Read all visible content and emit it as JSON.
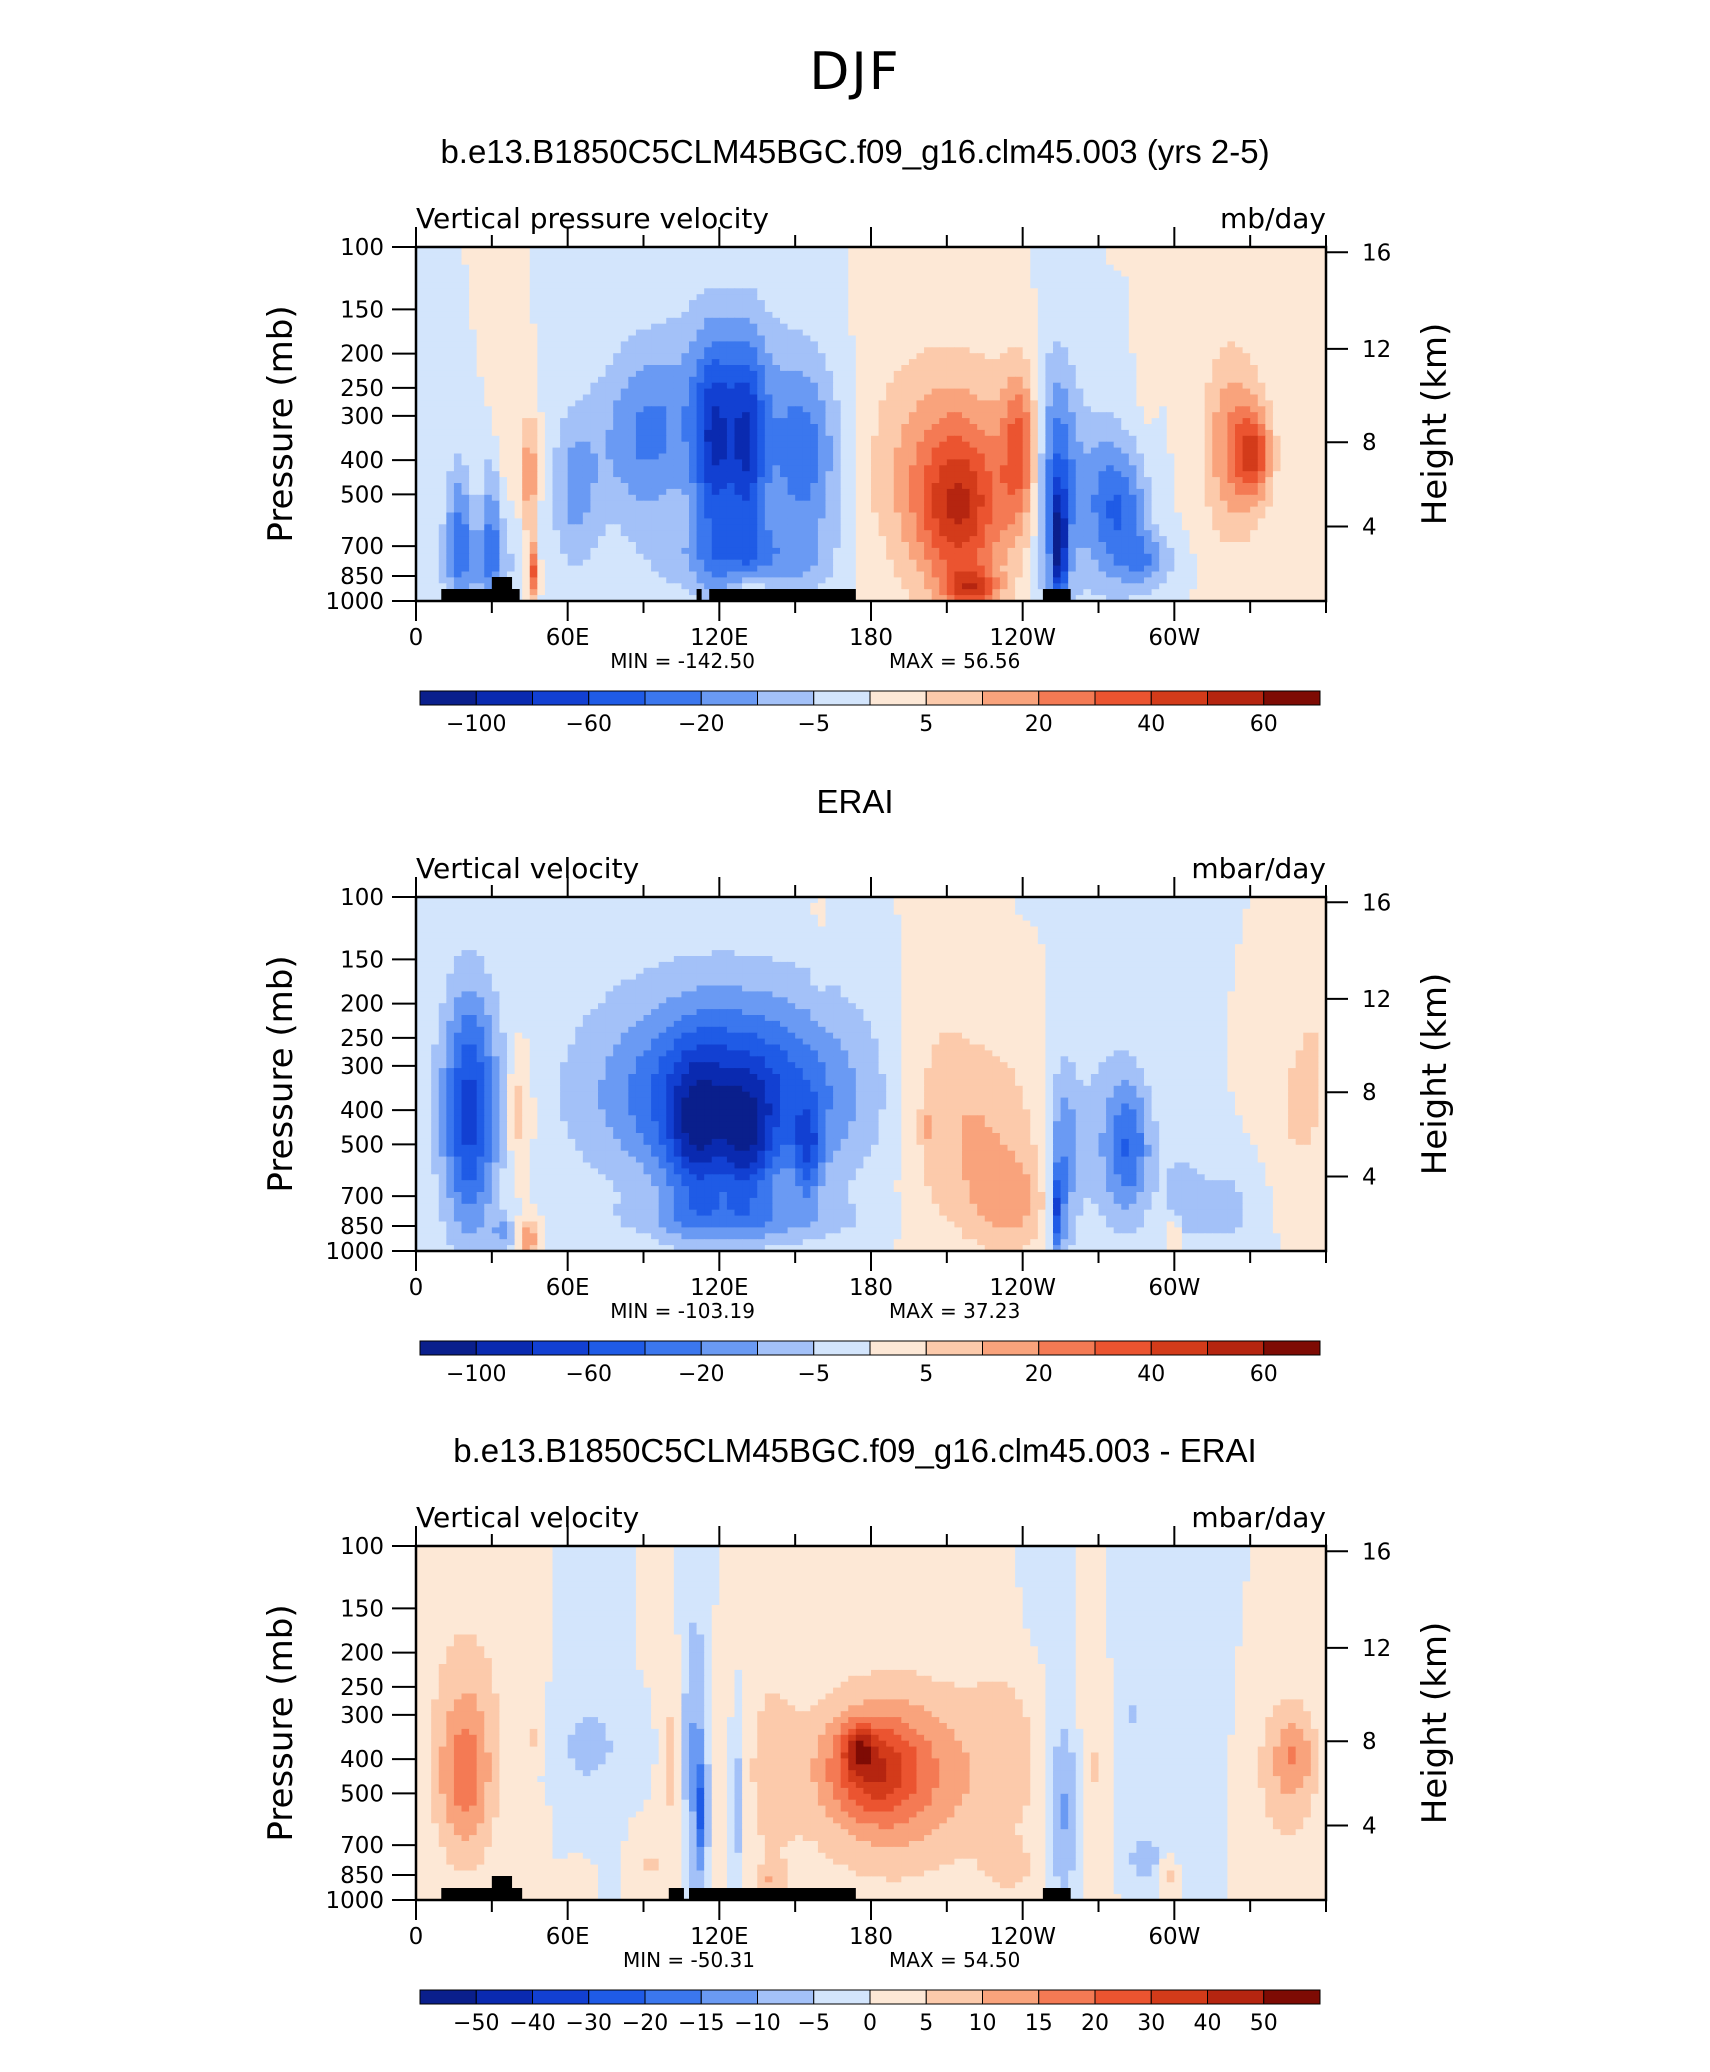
{
  "page": {
    "title": "DJF"
  },
  "chart_data": [
    {
      "type": "heatmap",
      "title": "b.e13.B1850C5CLM45BGC.f09_g16.clm45.003 (yrs 2-5)",
      "variable": "Vertical pressure velocity",
      "units": "mb/day",
      "ylabel": "Pressure (mb)",
      "y2label": "Height (km)",
      "x_ticks": [
        "0",
        "60E",
        "120E",
        "180",
        "120W",
        "60W"
      ],
      "y_ticks": [
        "100",
        "150",
        "200",
        "250",
        "300",
        "400",
        "500",
        "700",
        "850",
        "1000"
      ],
      "y2_ticks": [
        "16",
        "12",
        "8",
        "4"
      ],
      "stats": {
        "min_label": "MIN = -142.50",
        "max_label": "MAX = 56.56",
        "min": -142.5,
        "max": 56.56
      },
      "colorbar_labels": [
        "-100",
        "-60",
        "-20",
        "-5",
        "5",
        "20",
        "40",
        "60"
      ],
      "colors": [
        "#0a1f8c",
        "#0a2ab0",
        "#1240d2",
        "#1f5be6",
        "#3b77ee",
        "#6a9af3",
        "#a3c1f8",
        "#d3e5fc",
        "#fde8d6",
        "#fccaab",
        "#f9a37c",
        "#f47a54",
        "#eb5430",
        "#d33b1a",
        "#b52510",
        "#7e0b04"
      ],
      "land_mask": [
        [
          10,
          41,
          0.15
        ],
        [
          30,
          38,
          0.25
        ],
        [
          111,
          113,
          0.15
        ],
        [
          116,
          174,
          0.15
        ],
        [
          248,
          259,
          0.15
        ]
      ],
      "blobs": [
        [
          10,
          40,
          600,
          1000,
          -0.35
        ],
        [
          12,
          22,
          400,
          950,
          -0.5
        ],
        [
          26,
          34,
          380,
          950,
          -0.45
        ],
        [
          30,
          38,
          120,
          500,
          0.18
        ],
        [
          42,
          48,
          300,
          650,
          0.55
        ],
        [
          44,
          48,
          700,
          980,
          0.85
        ],
        [
          54,
          72,
          300,
          800,
          -0.4
        ],
        [
          72,
          110,
          200,
          600,
          -0.55
        ],
        [
          110,
          126,
          200,
          700,
          -0.9
        ],
        [
          124,
          138,
          200,
          700,
          -0.85
        ],
        [
          138,
          168,
          220,
          700,
          -0.65
        ],
        [
          96,
          150,
          125,
          400,
          -0.25
        ],
        [
          100,
          160,
          600,
          980,
          -0.45
        ],
        [
          125,
          140,
          900,
          1000,
          0.35
        ],
        [
          180,
          240,
          200,
          900,
          0.5
        ],
        [
          200,
          230,
          350,
          900,
          0.7
        ],
        [
          210,
          230,
          870,
          980,
          0.7
        ],
        [
          232,
          246,
          230,
          600,
          0.65
        ],
        [
          245,
          262,
          220,
          980,
          -0.8
        ],
        [
          252,
          257,
          500,
          1000,
          -1.0
        ],
        [
          262,
          280,
          300,
          900,
          -0.45
        ],
        [
          272,
          290,
          380,
          850,
          -0.55
        ],
        [
          280,
          300,
          650,
          920,
          -0.4
        ],
        [
          286,
          292,
          150,
          300,
          0.12
        ],
        [
          312,
          335,
          200,
          650,
          0.55
        ],
        [
          325,
          338,
          300,
          500,
          0.7
        ]
      ]
    },
    {
      "type": "heatmap",
      "title": "ERAI",
      "variable": "Vertical velocity",
      "units": "mbar/day",
      "ylabel": "Pressure (mb)",
      "y2label": "Height (km)",
      "x_ticks": [
        "0",
        "60E",
        "120E",
        "180",
        "120W",
        "60W"
      ],
      "y_ticks": [
        "100",
        "150",
        "200",
        "250",
        "300",
        "400",
        "500",
        "700",
        "850",
        "1000"
      ],
      "y2_ticks": [
        "16",
        "12",
        "8",
        "4"
      ],
      "stats": {
        "min_label": "MIN = -103.19",
        "max_label": "MAX = 37.23",
        "min": -103.19,
        "max": 37.23
      },
      "colorbar_labels": [
        "-100",
        "-60",
        "-20",
        "-5",
        "5",
        "20",
        "40",
        "60"
      ],
      "colors": [
        "#0a1f8c",
        "#0a2ab0",
        "#1240d2",
        "#1f5be6",
        "#3b77ee",
        "#6a9af3",
        "#a3c1f8",
        "#d3e5fc",
        "#fde8d6",
        "#fccaab",
        "#f9a37c",
        "#f47a54",
        "#eb5430",
        "#d33b1a",
        "#b52510",
        "#7e0b04"
      ],
      "land_mask": [],
      "blobs": [
        [
          8,
          34,
          200,
          800,
          -0.55
        ],
        [
          12,
          30,
          180,
          950,
          -0.6
        ],
        [
          30,
          40,
          800,
          1000,
          -0.4
        ],
        [
          36,
          46,
          260,
          600,
          0.45
        ],
        [
          40,
          48,
          850,
          1000,
          0.7
        ],
        [
          70,
          176,
          250,
          700,
          -0.5
        ],
        [
          86,
          165,
          200,
          600,
          -0.62
        ],
        [
          100,
          122,
          300,
          800,
          -0.68
        ],
        [
          122,
          140,
          350,
          750,
          -0.65
        ],
        [
          150,
          160,
          400,
          700,
          -0.65
        ],
        [
          60,
          180,
          125,
          450,
          -0.25
        ],
        [
          88,
          170,
          700,
          950,
          -0.45
        ],
        [
          158,
          160,
          100,
          200,
          0.15
        ],
        [
          190,
          220,
          150,
          900,
          0.25
        ],
        [
          205,
          246,
          250,
          800,
          0.4
        ],
        [
          220,
          250,
          550,
          980,
          0.45
        ],
        [
          200,
          205,
          400,
          500,
          0.3
        ],
        [
          250,
          262,
          300,
          980,
          -0.62
        ],
        [
          252,
          256,
          600,
          1000,
          -0.9
        ],
        [
          262,
          290,
          260,
          900,
          -0.4
        ],
        [
          275,
          290,
          350,
          750,
          -0.55
        ],
        [
          295,
          312,
          500,
          1000,
          -0.3
        ],
        [
          298,
          302,
          850,
          1000,
          0.6
        ],
        [
          310,
          330,
          600,
          950,
          -0.35
        ],
        [
          340,
          358,
          250,
          600,
          0.3
        ],
        [
          350,
          360,
          140,
          400,
          0.15
        ]
      ]
    },
    {
      "type": "heatmap",
      "title": "b.e13.B1850C5CLM45BGC.f09_g16.clm45.003 - ERAI",
      "variable": "Vertical velocity",
      "units": "mbar/day",
      "ylabel": "Pressure (mb)",
      "y2label": "Height (km)",
      "x_ticks": [
        "0",
        "60E",
        "120E",
        "180",
        "120W",
        "60W"
      ],
      "y_ticks": [
        "100",
        "150",
        "200",
        "250",
        "300",
        "400",
        "500",
        "700",
        "850",
        "1000"
      ],
      "y2_ticks": [
        "16",
        "12",
        "8",
        "4"
      ],
      "stats": {
        "min_label": "MIN = -50.31",
        "max_label": "MAX = 54.50",
        "min": -50.31,
        "max": 54.5
      },
      "colorbar_labels": [
        "-50",
        "-40",
        "-30",
        "-20",
        "-15",
        "-10",
        "-5",
        "0",
        "5",
        "10",
        "15",
        "20",
        "30",
        "40",
        "50"
      ],
      "colors": [
        "#0a1f8c",
        "#0a2ab0",
        "#1240d2",
        "#1f5be6",
        "#3b77ee",
        "#6a9af3",
        "#a3c1f8",
        "#d3e5fc",
        "#fde8d6",
        "#fccaab",
        "#f9a37c",
        "#f47a54",
        "#eb5430",
        "#d33b1a",
        "#b52510",
        "#7e0b04"
      ],
      "land_mask": [
        [
          10,
          42,
          0.15
        ],
        [
          30,
          38,
          0.25
        ],
        [
          100,
          106,
          0.15
        ],
        [
          108,
          174,
          0.15
        ],
        [
          248,
          259,
          0.15
        ]
      ],
      "blobs": [
        [
          5,
          35,
          150,
          800,
          0.6
        ],
        [
          10,
          28,
          300,
          700,
          0.75
        ],
        [
          42,
          50,
          300,
          400,
          0.4
        ],
        [
          55,
          85,
          300,
          450,
          -0.35
        ],
        [
          60,
          75,
          150,
          700,
          -0.2
        ],
        [
          98,
          106,
          200,
          800,
          0.55
        ],
        [
          104,
          116,
          150,
          1000,
          -0.75
        ],
        [
          112,
          114,
          400,
          800,
          -1.0
        ],
        [
          116,
          124,
          200,
          900,
          0.3
        ],
        [
          124,
          130,
          300,
          900,
          -0.65
        ],
        [
          130,
          150,
          200,
          900,
          0.35
        ],
        [
          135,
          146,
          800,
          1000,
          0.5
        ],
        [
          150,
          230,
          220,
          900,
          0.55
        ],
        [
          160,
          215,
          280,
          700,
          0.75
        ],
        [
          165,
          195,
          320,
          550,
          0.9
        ],
        [
          170,
          180,
          330,
          420,
          1.0
        ],
        [
          220,
          250,
          180,
          700,
          0.35
        ],
        [
          225,
          245,
          700,
          950,
          0.35
        ],
        [
          235,
          255,
          120,
          300,
          -0.15
        ],
        [
          250,
          262,
          300,
          980,
          -0.8
        ],
        [
          263,
          275,
          200,
          900,
          0.35
        ],
        [
          276,
          292,
          150,
          600,
          -0.35
        ],
        [
          282,
          296,
          650,
          900,
          -0.5
        ],
        [
          294,
          300,
          800,
          900,
          0.55
        ],
        [
          300,
          320,
          150,
          650,
          -0.2
        ],
        [
          330,
          358,
          250,
          800,
          0.5
        ],
        [
          340,
          355,
          300,
          500,
          0.6
        ],
        [
          60,
          70,
          800,
          950,
          0.3
        ],
        [
          88,
          98,
          700,
          900,
          0.4
        ]
      ]
    }
  ]
}
